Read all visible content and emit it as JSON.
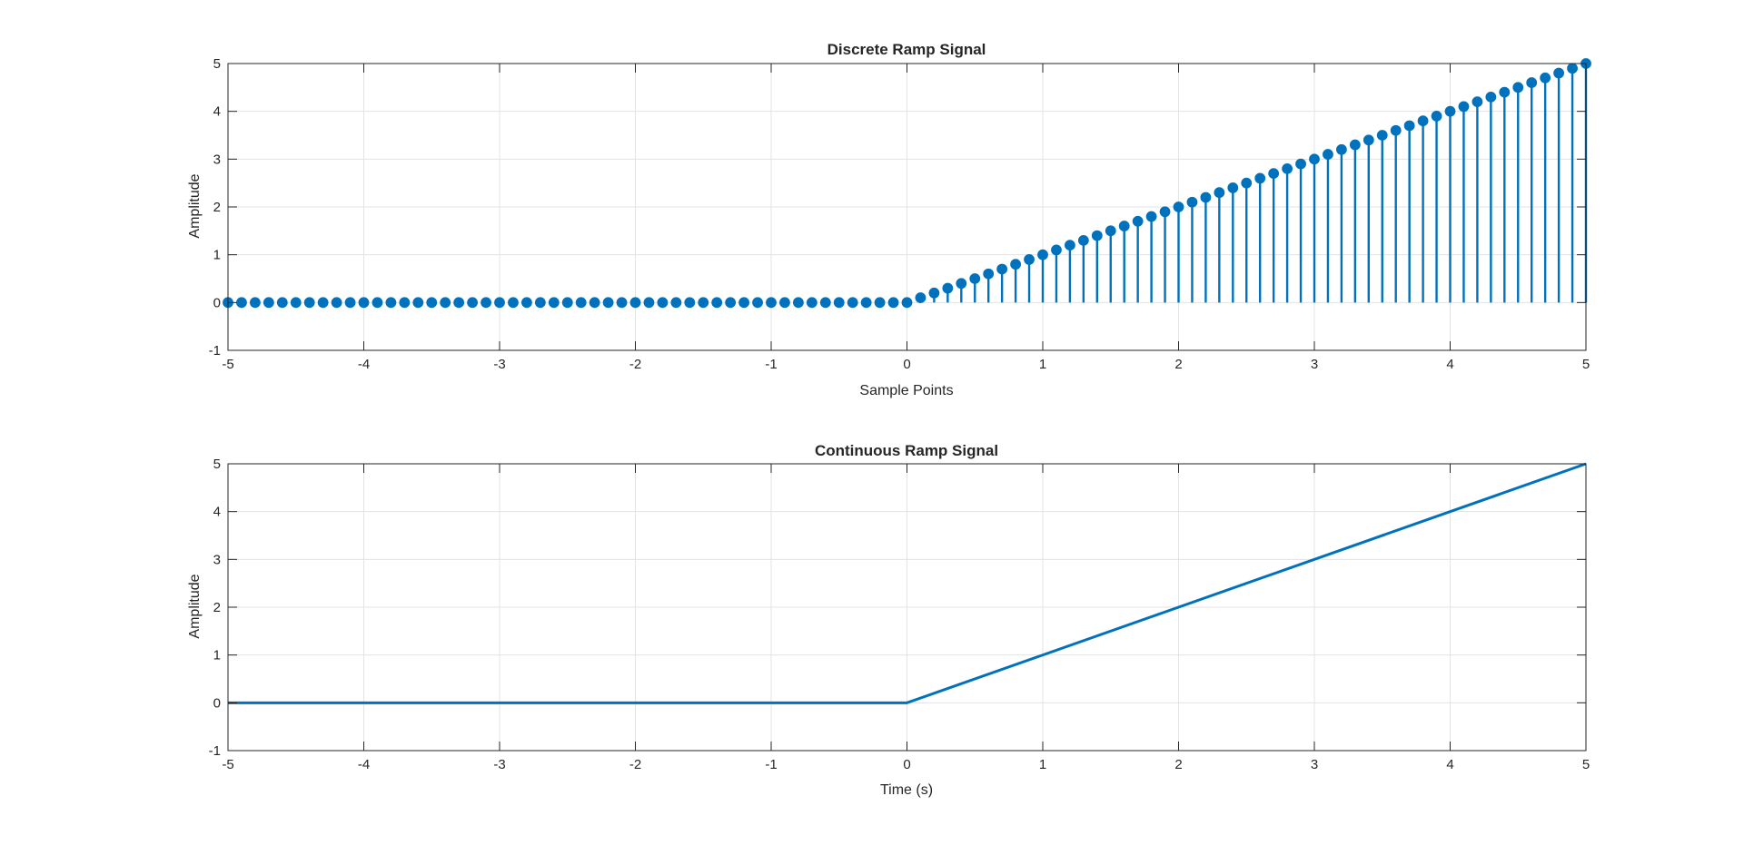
{
  "figure": {
    "line_color": "#0072BD",
    "grid": true
  },
  "chart_data": [
    {
      "type": "stem",
      "title": "Discrete Ramp Signal",
      "xlabel": "Sample Points",
      "ylabel": "Amplitude",
      "xlim": [
        -5,
        5
      ],
      "ylim": [
        -1,
        5
      ],
      "xticks": [
        "-5",
        "-4",
        "-3",
        "-2",
        "-1",
        "0",
        "1",
        "2",
        "3",
        "4",
        "5"
      ],
      "yticks": [
        "-1",
        "0",
        "1",
        "2",
        "3",
        "4",
        "5"
      ],
      "x_range": {
        "start": -5,
        "stop": 5,
        "step": 0.1
      },
      "y_rule": "y = x for x >= 0, else 0"
    },
    {
      "type": "line",
      "title": "Continuous Ramp Signal",
      "xlabel": "Time (s)",
      "ylabel": "Amplitude",
      "xlim": [
        -5,
        5
      ],
      "ylim": [
        -1,
        5
      ],
      "xticks": [
        "-5",
        "-4",
        "-3",
        "-2",
        "-1",
        "0",
        "1",
        "2",
        "3",
        "4",
        "5"
      ],
      "yticks": [
        "-1",
        "0",
        "1",
        "2",
        "3",
        "4",
        "5"
      ],
      "points": [
        {
          "x": -5,
          "y": 0
        },
        {
          "x": 0,
          "y": 0
        },
        {
          "x": 5,
          "y": 5
        }
      ]
    }
  ]
}
